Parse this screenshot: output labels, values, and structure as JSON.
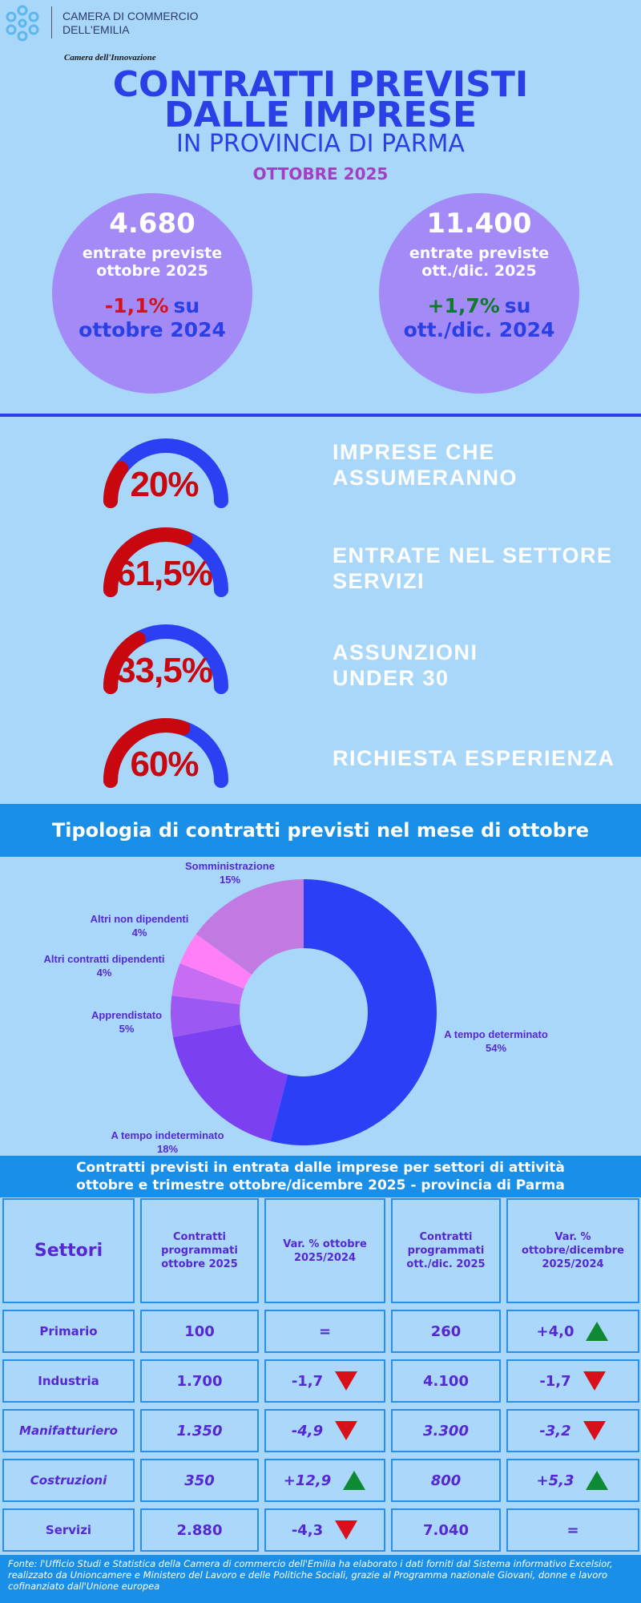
{
  "header": {
    "org": [
      "CAMERA DI COMMERCIO",
      "DELL'EMILIA"
    ],
    "tagline": "Camera dell'Innovazione",
    "title": [
      "CONTRATTI PREVISTI",
      "DALLE IMPRESE"
    ],
    "subtitle": "IN PROVINCIA DI PARMA",
    "period": "OTTOBRE 2025"
  },
  "kpis": [
    {
      "value": "4.680",
      "label": [
        "entrate previste",
        "ottobre 2025"
      ],
      "change": "-1,1%",
      "change_suffix": "su",
      "comparison": "ottobre 2024"
    },
    {
      "value": "11.400",
      "label": [
        "entrate previste",
        "ott./dic. 2025"
      ],
      "change": "+1,7%",
      "change_suffix": "su",
      "comparison": "ott./dic. 2024"
    }
  ],
  "gauges": [
    {
      "value": 20,
      "label": "20%",
      "text": [
        "IMPRESE CHE",
        "ASSUMERANNO"
      ]
    },
    {
      "value": 61.5,
      "label": "61,5%",
      "text": [
        "ENTRATE NEL SETTORE",
        "SERVIZI"
      ]
    },
    {
      "value": 33.5,
      "label": "33,5%",
      "text": [
        "ASSUNZIONI",
        "UNDER 30"
      ]
    },
    {
      "value": 60,
      "label": "60%",
      "text": [
        "RICHIESTA ESPERIENZA"
      ]
    }
  ],
  "chart_data": {
    "type": "pie",
    "donut": true,
    "title": "Tipologia di contratti previsti nel mese di ottobre",
    "categories": [
      "A tempo determinato",
      "A tempo indeterminato",
      "Apprendistato",
      "Altri contratti dipendenti",
      "Altri non dipendenti",
      "Somministrazione"
    ],
    "values": [
      54,
      18,
      5,
      4,
      4,
      15
    ],
    "value_labels": [
      "54%",
      "18%",
      "5%",
      "4%",
      "4%",
      "15%"
    ],
    "colors": [
      "#2b40f6",
      "#7a40f2",
      "#9b58f2",
      "#c76cf3",
      "#ff80f6",
      "#c07ae2"
    ]
  },
  "table": {
    "title": [
      "Contratti previsti in entrata dalle imprese per settori di attività",
      "ottobre e trimestre ottobre/dicembre 2025  -  provincia di Parma"
    ],
    "columns": [
      "Settori",
      "Contratti programmati ottobre 2025",
      "Var. % ottobre 2025/2024",
      "Contratti programmati ott./dic. 2025",
      "Var. % ottobre/dicembre 2025/2024"
    ],
    "rows": [
      [
        "Primario",
        "100",
        "=",
        "260",
        "+4,0"
      ],
      [
        "Industria",
        "1.700",
        "-1,7",
        "4.100",
        "-1,7"
      ],
      [
        "Manifatturiero",
        "1.350",
        "-4,9",
        "3.300",
        "-3,2"
      ],
      [
        "Costruzioni",
        "350",
        "+12,9",
        "800",
        "+5,3"
      ],
      [
        "Servizi",
        "2.880",
        "-4,3",
        "7.040",
        "="
      ]
    ]
  },
  "footer": "Fonte: l'Ufficio Studi e Statistica della Camera di commercio dell'Emilia  ha elaborato i dati forniti dal Sistema informativo Excelsior, realizzato da Unioncamere e Ministero del Lavoro e delle Politiche Sociali, grazie al Programma nazionale Giovani, donne e lavoro cofinanziato dall'Unione europea"
}
